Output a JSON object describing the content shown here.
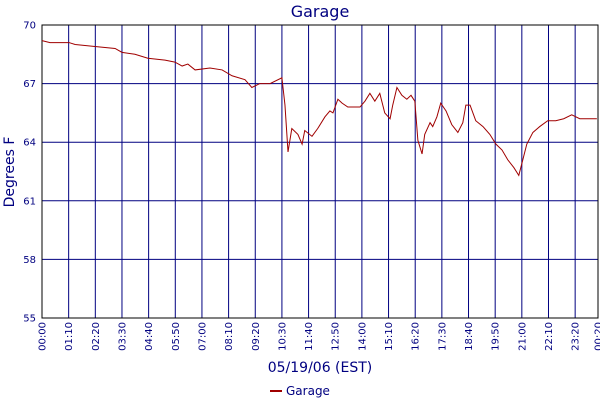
{
  "chart_data": {
    "type": "line",
    "title": "Garage",
    "y_label": "Degrees F",
    "x_label": "05/19/06 (EST)",
    "xlim": [
      0,
      1460
    ],
    "ylim": [
      55,
      70
    ],
    "yticks": [
      55,
      58,
      61,
      64,
      67,
      70
    ],
    "grid": true,
    "xticks": [
      {
        "value": 0,
        "label": "00:00"
      },
      {
        "value": 70,
        "label": "01:10"
      },
      {
        "value": 140,
        "label": "02:20"
      },
      {
        "value": 210,
        "label": "03:30"
      },
      {
        "value": 280,
        "label": "04:40"
      },
      {
        "value": 350,
        "label": "05:50"
      },
      {
        "value": 420,
        "label": "07:00"
      },
      {
        "value": 490,
        "label": "08:10"
      },
      {
        "value": 560,
        "label": "09:20"
      },
      {
        "value": 630,
        "label": "10:30"
      },
      {
        "value": 700,
        "label": "11:40"
      },
      {
        "value": 770,
        "label": "12:50"
      },
      {
        "value": 840,
        "label": "14:00"
      },
      {
        "value": 910,
        "label": "15:10"
      },
      {
        "value": 980,
        "label": "16:20"
      },
      {
        "value": 1050,
        "label": "17:30"
      },
      {
        "value": 1120,
        "label": "18:40"
      },
      {
        "value": 1190,
        "label": "19:50"
      },
      {
        "value": 1260,
        "label": "21:00"
      },
      {
        "value": 1330,
        "label": "22:10"
      },
      {
        "value": 1400,
        "label": "23:20"
      },
      {
        "value": 1460,
        "label": "00:20"
      }
    ],
    "x": [
      0,
      21,
      71,
      87,
      139,
      192,
      210,
      244,
      278,
      323,
      349,
      368,
      383,
      402,
      441,
      473,
      499,
      533,
      551,
      572,
      599,
      630,
      638,
      646,
      656,
      672,
      683,
      690,
      709,
      724,
      743,
      756,
      764,
      777,
      788,
      803,
      835,
      848,
      861,
      874,
      887,
      900,
      914,
      921,
      932,
      945,
      958,
      969,
      979,
      987,
      998,
      1005,
      1019,
      1026,
      1037,
      1047,
      1061,
      1076,
      1092,
      1105,
      1113,
      1124,
      1139,
      1158,
      1176,
      1192,
      1208,
      1223,
      1239,
      1252,
      1260,
      1273,
      1289,
      1307,
      1328,
      1349,
      1370,
      1391,
      1412,
      1457
    ],
    "series": [
      {
        "name": "Garage",
        "color": "#a00000",
        "values": [
          69.2,
          69.1,
          69.1,
          69.0,
          68.9,
          68.8,
          68.6,
          68.5,
          68.3,
          68.2,
          68.1,
          67.9,
          68.0,
          67.7,
          67.8,
          67.7,
          67.4,
          67.2,
          66.8,
          67.0,
          67.0,
          67.3,
          65.9,
          63.5,
          64.7,
          64.4,
          63.9,
          64.6,
          64.3,
          64.7,
          65.3,
          65.6,
          65.5,
          66.2,
          66.0,
          65.8,
          65.8,
          66.1,
          66.5,
          66.1,
          66.5,
          65.5,
          65.2,
          65.9,
          66.8,
          66.4,
          66.2,
          66.4,
          66.1,
          64.1,
          63.4,
          64.4,
          65.0,
          64.8,
          65.3,
          66.0,
          65.6,
          64.9,
          64.5,
          65.0,
          65.9,
          65.9,
          65.1,
          64.8,
          64.4,
          63.9,
          63.6,
          63.1,
          62.7,
          62.3,
          62.9,
          63.9,
          64.5,
          64.8,
          65.1,
          65.1,
          65.2,
          65.4,
          65.2,
          65.2
        ]
      }
    ]
  }
}
